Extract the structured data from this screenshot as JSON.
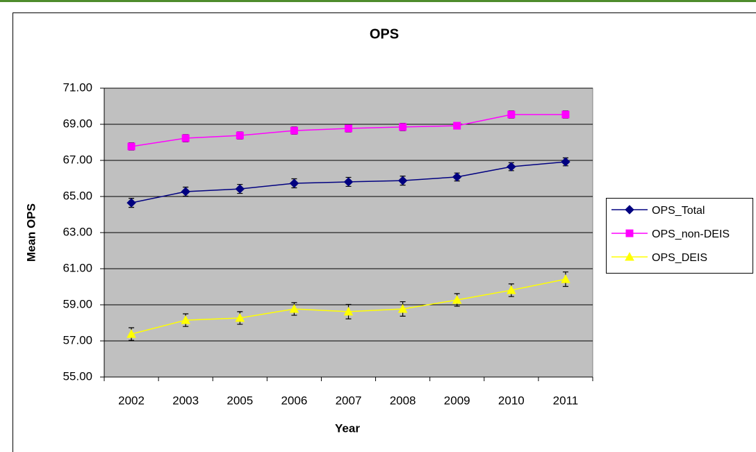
{
  "chart_data": {
    "type": "line",
    "title": "OPS",
    "x_label": "Year",
    "y_label": "Mean OPS",
    "categories": [
      "2002",
      "2003",
      "2005",
      "2006",
      "2007",
      "2008",
      "2009",
      "2010",
      "2011"
    ],
    "ylim": [
      55,
      71
    ],
    "yticks": [
      {
        "value": 55,
        "label": "55.00"
      },
      {
        "value": 57,
        "label": "57.00"
      },
      {
        "value": 59,
        "label": "59.00"
      },
      {
        "value": 61,
        "label": "61.00"
      },
      {
        "value": 63,
        "label": "63.00"
      },
      {
        "value": 65,
        "label": "65.00"
      },
      {
        "value": 67,
        "label": "67.00"
      },
      {
        "value": 69,
        "label": "69.00"
      },
      {
        "value": 71,
        "label": "71.00"
      }
    ],
    "grid": true,
    "legend": "right",
    "series": [
      {
        "name": "OPS_Total",
        "color": "#000080",
        "marker": "diamond",
        "values": [
          64.65,
          65.27,
          65.42,
          65.73,
          65.81,
          65.88,
          66.08,
          66.65,
          66.92
        ],
        "errors": [
          0.25,
          0.25,
          0.25,
          0.25,
          0.25,
          0.25,
          0.22,
          0.22,
          0.22
        ]
      },
      {
        "name": "OPS_non-DEIS",
        "color": "#ff00ff",
        "marker": "square",
        "values": [
          67.77,
          68.23,
          68.38,
          68.65,
          68.77,
          68.85,
          68.92,
          69.54,
          69.54
        ],
        "errors": [
          0.2,
          0.2,
          0.2,
          0.2,
          0.2,
          0.2,
          0.15,
          0.2,
          0.2
        ]
      },
      {
        "name": "OPS_DEIS",
        "color": "#ffff00",
        "marker": "triangle",
        "values": [
          57.38,
          58.15,
          58.27,
          58.77,
          58.62,
          58.77,
          59.27,
          59.81,
          60.42
        ],
        "errors": [
          0.35,
          0.35,
          0.35,
          0.35,
          0.4,
          0.4,
          0.35,
          0.35,
          0.4
        ]
      }
    ]
  }
}
